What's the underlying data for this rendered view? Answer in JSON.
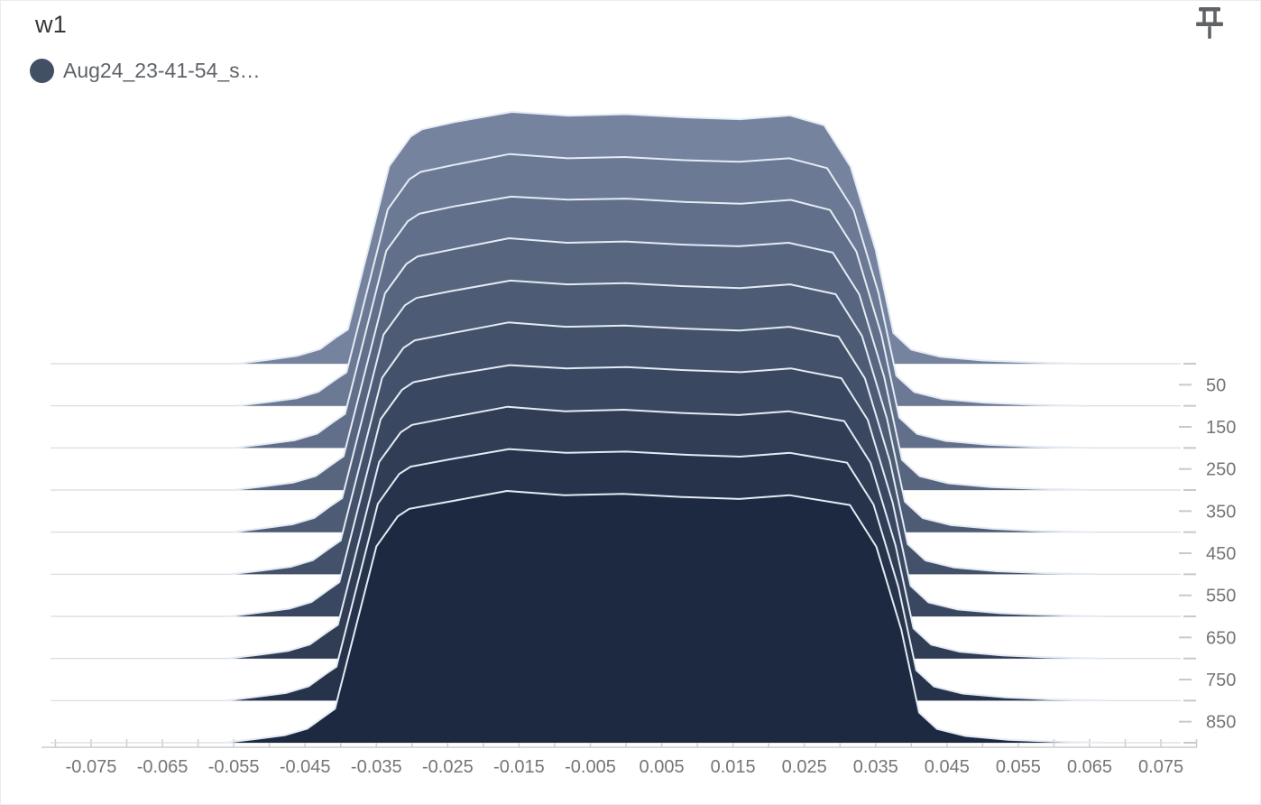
{
  "card": {
    "title": "w1",
    "legend": {
      "label": "Aug24_23-41-54_s…",
      "color": "#425066"
    },
    "pin_icon": "push-pin",
    "pin_color": "#5f6368"
  },
  "colors": {
    "ridge_back_fill": "#76839f",
    "ridge_front_fill": "#1c2940",
    "ridge_outline": "#e4ebf4",
    "baseline_line": "#d9d9d9",
    "axis_line": "#cccccc",
    "tick_dash": "#c9c9c9",
    "tick_label": "#757575"
  },
  "chart_data": {
    "type": "area",
    "mode": "histogram-offset-ridgeline",
    "title": "w1",
    "xlabel": "value",
    "ylabel": "step",
    "legend_position": "top-left",
    "grid": "per-ridge-baselines",
    "xlim": [
      -0.08,
      0.08
    ],
    "x_minor_tick_step": 0.005,
    "x_tick_labels": [
      "-0.075",
      "-0.065",
      "-0.055",
      "-0.045",
      "-0.035",
      "-0.025",
      "-0.015",
      "-0.005",
      "0.005",
      "0.015",
      "0.025",
      "0.035",
      "0.045",
      "0.055",
      "0.065",
      "0.075"
    ],
    "x_tick_values": [
      -0.075,
      -0.065,
      -0.055,
      -0.045,
      -0.035,
      -0.025,
      -0.015,
      -0.005,
      0.005,
      0.015,
      0.025,
      0.035,
      0.045,
      0.055,
      0.065,
      0.075
    ],
    "y_axis_side": "right",
    "y_tick_labels": [
      "50",
      "150",
      "250",
      "350",
      "450",
      "550",
      "650",
      "750",
      "850"
    ],
    "y_tick_values": [
      50,
      150,
      250,
      350,
      450,
      550,
      650,
      750,
      850
    ],
    "steps": [
      0,
      100,
      200,
      300,
      400,
      500,
      600,
      700,
      800,
      900
    ],
    "series": [
      {
        "step": 0,
        "points": [
          [
            -0.0545,
            0
          ],
          [
            -0.05,
            0.016
          ],
          [
            -0.046,
            0.032
          ],
          [
            -0.0429,
            0.058
          ],
          [
            -0.0406,
            0.106
          ],
          [
            -0.039,
            0.136
          ],
          [
            -0.0332,
            0.785
          ],
          [
            -0.0302,
            0.902
          ],
          [
            -0.0286,
            0.931
          ],
          [
            -0.024,
            0.96
          ],
          [
            -0.016,
            1.0
          ],
          [
            -0.008,
            0.985
          ],
          [
            0.0,
            0.991
          ],
          [
            0.008,
            0.979
          ],
          [
            0.016,
            0.971
          ],
          [
            0.023,
            0.986
          ],
          [
            0.0278,
            0.947
          ],
          [
            0.0315,
            0.782
          ],
          [
            0.035,
            0.452
          ],
          [
            0.0375,
            0.122
          ],
          [
            0.04,
            0.056
          ],
          [
            0.044,
            0.028
          ],
          [
            0.05,
            0.013
          ],
          [
            0.056,
            0.006
          ],
          [
            0.064,
            0
          ]
        ]
      },
      {
        "step": 100,
        "points": [
          [
            -0.0547,
            0
          ],
          [
            -0.0502,
            0.015
          ],
          [
            -0.0462,
            0.03
          ],
          [
            -0.0431,
            0.056
          ],
          [
            -0.0408,
            0.103
          ],
          [
            -0.0392,
            0.133
          ],
          [
            -0.0334,
            0.78
          ],
          [
            -0.0304,
            0.899
          ],
          [
            -0.0288,
            0.929
          ],
          [
            -0.0241,
            0.957
          ],
          [
            -0.0163,
            1.0
          ],
          [
            -0.0082,
            0.983
          ],
          [
            -0.0002,
            0.988
          ],
          [
            0.0079,
            0.976
          ],
          [
            0.0159,
            0.969
          ],
          [
            0.0229,
            0.983
          ],
          [
            0.0282,
            0.944
          ],
          [
            0.0319,
            0.778
          ],
          [
            0.0354,
            0.449
          ],
          [
            0.0379,
            0.12
          ],
          [
            0.0404,
            0.055
          ],
          [
            0.0444,
            0.027
          ],
          [
            0.0504,
            0.012
          ],
          [
            0.0564,
            0.005
          ],
          [
            0.0644,
            0
          ]
        ]
      },
      {
        "step": 200,
        "points": [
          [
            -0.0549,
            0
          ],
          [
            -0.0504,
            0.016
          ],
          [
            -0.0464,
            0.031
          ],
          [
            -0.0433,
            0.057
          ],
          [
            -0.041,
            0.104
          ],
          [
            -0.0394,
            0.135
          ],
          [
            -0.0336,
            0.783
          ],
          [
            -0.0306,
            0.9
          ],
          [
            -0.029,
            0.93
          ],
          [
            -0.0242,
            0.959
          ],
          [
            -0.0161,
            0.998
          ],
          [
            -0.0081,
            0.986
          ],
          [
            0.0001,
            0.99
          ],
          [
            0.0081,
            0.977
          ],
          [
            0.0161,
            0.97
          ],
          [
            0.0231,
            0.985
          ],
          [
            0.0286,
            0.945
          ],
          [
            0.0323,
            0.78
          ],
          [
            0.0358,
            0.45
          ],
          [
            0.0383,
            0.121
          ],
          [
            0.0408,
            0.056
          ],
          [
            0.0448,
            0.028
          ],
          [
            0.0508,
            0.013
          ],
          [
            0.0568,
            0.005
          ],
          [
            0.0648,
            0
          ]
        ]
      },
      {
        "step": 300,
        "points": [
          [
            -0.0551,
            0
          ],
          [
            -0.0506,
            0.015
          ],
          [
            -0.0466,
            0.03
          ],
          [
            -0.0435,
            0.056
          ],
          [
            -0.0412,
            0.103
          ],
          [
            -0.0396,
            0.134
          ],
          [
            -0.0338,
            0.781
          ],
          [
            -0.0308,
            0.898
          ],
          [
            -0.0292,
            0.928
          ],
          [
            -0.0243,
            0.956
          ],
          [
            -0.0164,
            1.0
          ],
          [
            -0.0083,
            0.982
          ],
          [
            -0.0001,
            0.987
          ],
          [
            0.0078,
            0.975
          ],
          [
            0.0158,
            0.968
          ],
          [
            0.0228,
            0.982
          ],
          [
            0.029,
            0.943
          ],
          [
            0.0327,
            0.777
          ],
          [
            0.0362,
            0.448
          ],
          [
            0.0387,
            0.12
          ],
          [
            0.0412,
            0.055
          ],
          [
            0.0452,
            0.027
          ],
          [
            0.0512,
            0.012
          ],
          [
            0.0572,
            0.005
          ],
          [
            0.0652,
            0
          ]
        ]
      },
      {
        "step": 400,
        "points": [
          [
            -0.0553,
            0
          ],
          [
            -0.0508,
            0.016
          ],
          [
            -0.0468,
            0.031
          ],
          [
            -0.0437,
            0.057
          ],
          [
            -0.0414,
            0.105
          ],
          [
            -0.0398,
            0.135
          ],
          [
            -0.034,
            0.784
          ],
          [
            -0.031,
            0.901
          ],
          [
            -0.0294,
            0.93
          ],
          [
            -0.0244,
            0.958
          ],
          [
            -0.0162,
            0.999
          ],
          [
            -0.0082,
            0.984
          ],
          [
            0.0,
            0.989
          ],
          [
            0.008,
            0.977
          ],
          [
            0.016,
            0.969
          ],
          [
            0.023,
            0.984
          ],
          [
            0.0294,
            0.945
          ],
          [
            0.0331,
            0.779
          ],
          [
            0.0366,
            0.45
          ],
          [
            0.0391,
            0.121
          ],
          [
            0.0416,
            0.056
          ],
          [
            0.0456,
            0.028
          ],
          [
            0.0516,
            0.013
          ],
          [
            0.0576,
            0.005
          ],
          [
            0.0656,
            0
          ]
        ]
      },
      {
        "step": 500,
        "points": [
          [
            -0.0555,
            0
          ],
          [
            -0.051,
            0.015
          ],
          [
            -0.047,
            0.03
          ],
          [
            -0.0439,
            0.056
          ],
          [
            -0.0416,
            0.103
          ],
          [
            -0.04,
            0.134
          ],
          [
            -0.0342,
            0.78
          ],
          [
            -0.0312,
            0.899
          ],
          [
            -0.0296,
            0.929
          ],
          [
            -0.0245,
            0.957
          ],
          [
            -0.0165,
            1.0
          ],
          [
            -0.0084,
            0.983
          ],
          [
            -0.0002,
            0.988
          ],
          [
            0.0079,
            0.976
          ],
          [
            0.0159,
            0.968
          ],
          [
            0.0229,
            0.983
          ],
          [
            0.0298,
            0.944
          ],
          [
            0.0335,
            0.778
          ],
          [
            0.037,
            0.449
          ],
          [
            0.0395,
            0.12
          ],
          [
            0.042,
            0.055
          ],
          [
            0.046,
            0.027
          ],
          [
            0.052,
            0.012
          ],
          [
            0.058,
            0.005
          ],
          [
            0.066,
            0
          ]
        ]
      },
      {
        "step": 600,
        "points": [
          [
            -0.0557,
            0
          ],
          [
            -0.0512,
            0.016
          ],
          [
            -0.0472,
            0.031
          ],
          [
            -0.0441,
            0.057
          ],
          [
            -0.0418,
            0.104
          ],
          [
            -0.0402,
            0.136
          ],
          [
            -0.0344,
            0.783
          ],
          [
            -0.0314,
            0.9
          ],
          [
            -0.0298,
            0.93
          ],
          [
            -0.0246,
            0.959
          ],
          [
            -0.0163,
            0.998
          ],
          [
            -0.0083,
            0.985
          ],
          [
            0.0001,
            0.99
          ],
          [
            0.0081,
            0.978
          ],
          [
            0.0161,
            0.97
          ],
          [
            0.0231,
            0.985
          ],
          [
            0.0302,
            0.946
          ],
          [
            0.0339,
            0.78
          ],
          [
            0.0374,
            0.451
          ],
          [
            0.0399,
            0.122
          ],
          [
            0.0424,
            0.056
          ],
          [
            0.0464,
            0.028
          ],
          [
            0.0524,
            0.013
          ],
          [
            0.0584,
            0.006
          ],
          [
            0.0664,
            0
          ]
        ]
      },
      {
        "step": 700,
        "points": [
          [
            -0.0559,
            0
          ],
          [
            -0.0514,
            0.015
          ],
          [
            -0.0474,
            0.03
          ],
          [
            -0.0443,
            0.056
          ],
          [
            -0.042,
            0.103
          ],
          [
            -0.0404,
            0.134
          ],
          [
            -0.0346,
            0.781
          ],
          [
            -0.0316,
            0.898
          ],
          [
            -0.03,
            0.928
          ],
          [
            -0.0247,
            0.957
          ],
          [
            -0.0166,
            1.0
          ],
          [
            -0.0085,
            0.982
          ],
          [
            -0.0003,
            0.988
          ],
          [
            0.0078,
            0.975
          ],
          [
            0.0158,
            0.967
          ],
          [
            0.0228,
            0.982
          ],
          [
            0.0306,
            0.943
          ],
          [
            0.0343,
            0.777
          ],
          [
            0.0378,
            0.448
          ],
          [
            0.0403,
            0.12
          ],
          [
            0.0428,
            0.055
          ],
          [
            0.0468,
            0.027
          ],
          [
            0.0528,
            0.012
          ],
          [
            0.0588,
            0.005
          ],
          [
            0.0668,
            0
          ]
        ]
      },
      {
        "step": 800,
        "points": [
          [
            -0.0561,
            0
          ],
          [
            -0.0516,
            0.016
          ],
          [
            -0.0476,
            0.031
          ],
          [
            -0.0445,
            0.057
          ],
          [
            -0.0422,
            0.104
          ],
          [
            -0.0406,
            0.135
          ],
          [
            -0.0348,
            0.782
          ],
          [
            -0.0318,
            0.9
          ],
          [
            -0.0302,
            0.929
          ],
          [
            -0.0248,
            0.958
          ],
          [
            -0.0164,
            0.999
          ],
          [
            -0.0084,
            0.984
          ],
          [
            0.0,
            0.989
          ],
          [
            0.008,
            0.977
          ],
          [
            0.016,
            0.969
          ],
          [
            0.023,
            0.984
          ],
          [
            0.031,
            0.945
          ],
          [
            0.0347,
            0.779
          ],
          [
            0.0382,
            0.45
          ],
          [
            0.0407,
            0.121
          ],
          [
            0.0432,
            0.056
          ],
          [
            0.0472,
            0.028
          ],
          [
            0.0532,
            0.013
          ],
          [
            0.0592,
            0.005
          ],
          [
            0.0672,
            0
          ]
        ]
      },
      {
        "step": 900,
        "points": [
          [
            -0.0563,
            0
          ],
          [
            -0.0518,
            0.015
          ],
          [
            -0.0478,
            0.03
          ],
          [
            -0.0447,
            0.056
          ],
          [
            -0.0424,
            0.103
          ],
          [
            -0.0408,
            0.135
          ],
          [
            -0.035,
            0.78
          ],
          [
            -0.032,
            0.899
          ],
          [
            -0.0304,
            0.929
          ],
          [
            -0.0249,
            0.957
          ],
          [
            -0.0167,
            1.0
          ],
          [
            -0.0086,
            0.983
          ],
          [
            -0.0004,
            0.988
          ],
          [
            0.0079,
            0.976
          ],
          [
            0.0159,
            0.968
          ],
          [
            0.0229,
            0.983
          ],
          [
            0.0314,
            0.944
          ],
          [
            0.0351,
            0.778
          ],
          [
            0.0386,
            0.449
          ],
          [
            0.0411,
            0.12
          ],
          [
            0.0436,
            0.055
          ],
          [
            0.0476,
            0.027
          ],
          [
            0.0536,
            0.012
          ],
          [
            0.0596,
            0.005
          ],
          [
            0.0676,
            0
          ]
        ]
      }
    ]
  }
}
